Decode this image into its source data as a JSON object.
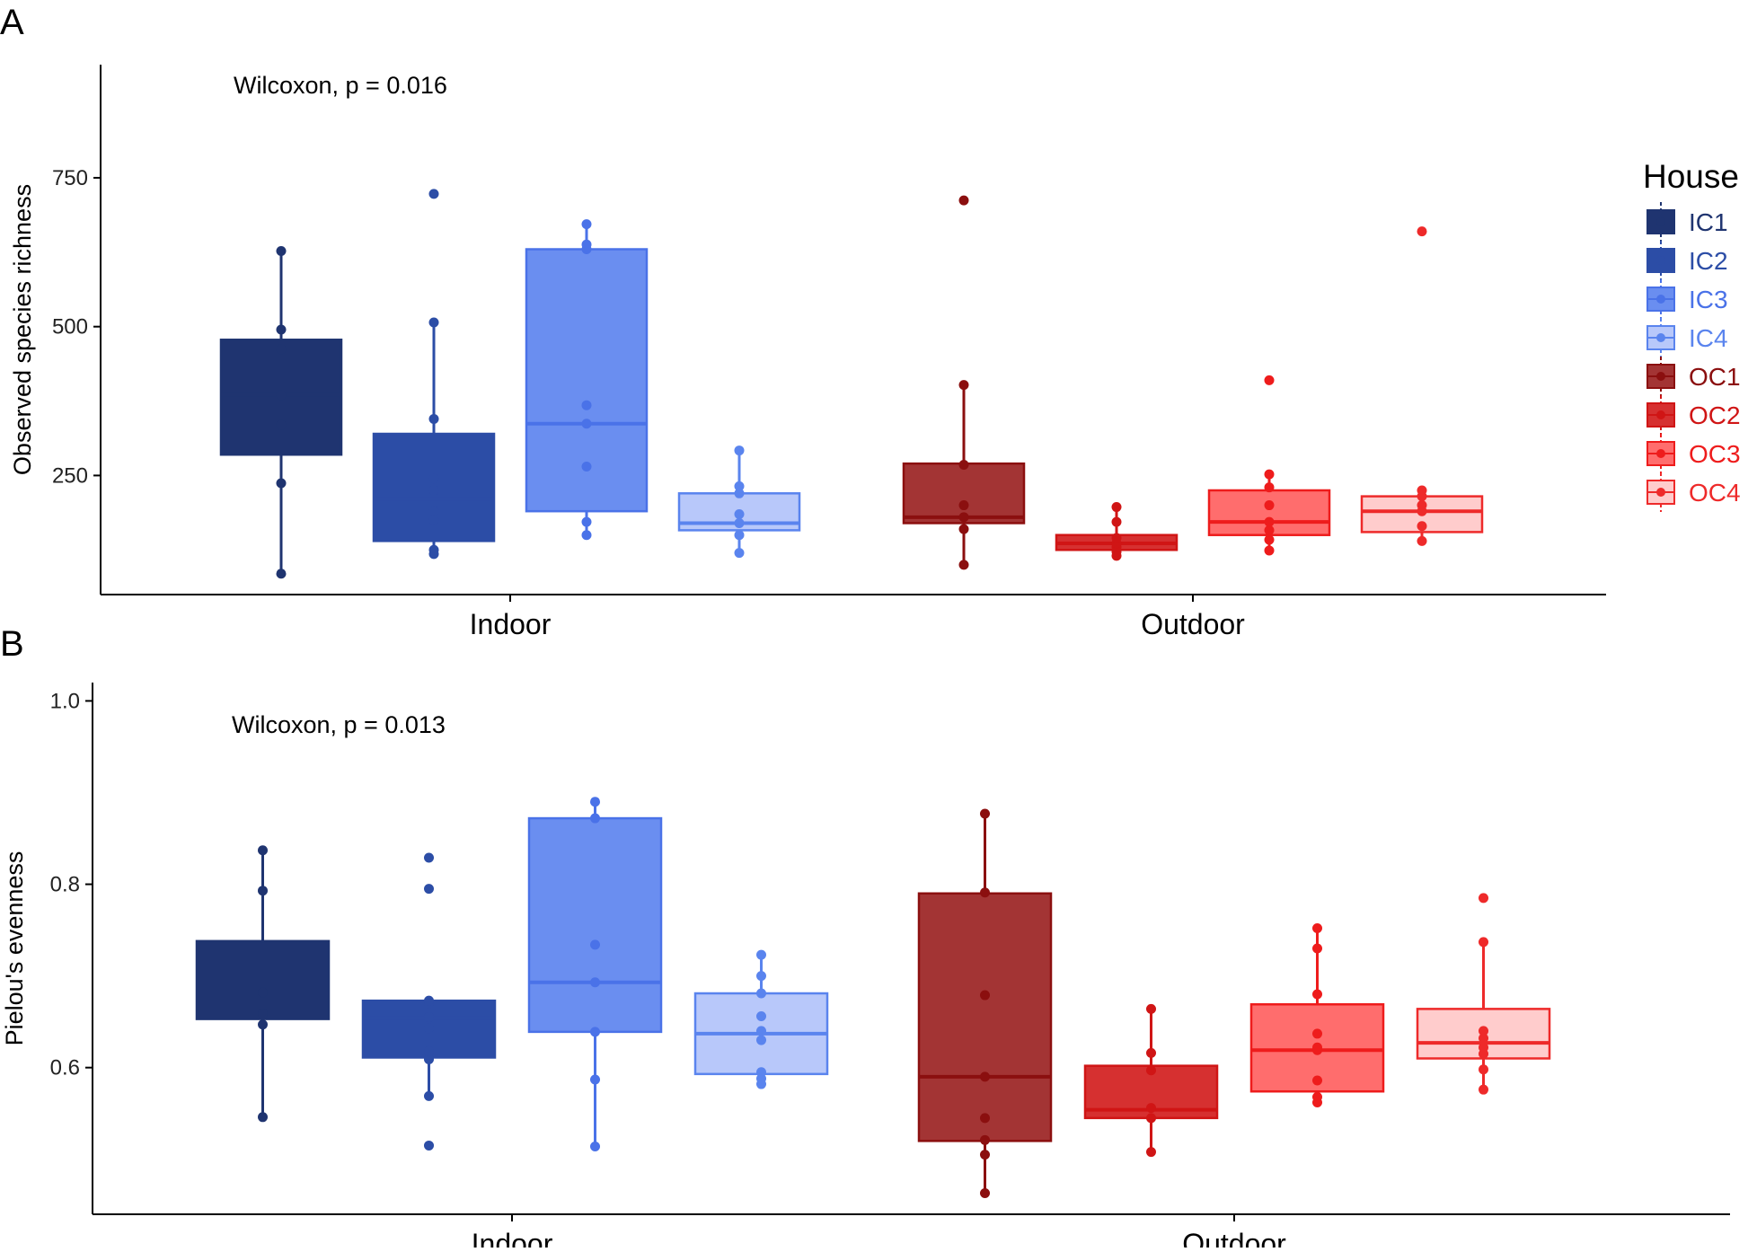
{
  "panel_labels": {
    "a": "A",
    "b": "B"
  },
  "legend": {
    "title": "House",
    "items": [
      {
        "label": "IC1",
        "fill": "#1f3470",
        "stroke": "#1f3470"
      },
      {
        "label": "IC2",
        "fill": "#2c4da6",
        "stroke": "#2c4da6"
      },
      {
        "label": "IC3",
        "fill": "#6a8ef0",
        "stroke": "#4a72e8"
      },
      {
        "label": "IC4",
        "fill": "#b8c8fa",
        "stroke": "#5a84ee"
      },
      {
        "label": "OC1",
        "fill": "#a33434",
        "stroke": "#8b0f0f"
      },
      {
        "label": "OC2",
        "fill": "#d63030",
        "stroke": "#d01515"
      },
      {
        "label": "OC3",
        "fill": "#ff6d6d",
        "stroke": "#ee1c1c"
      },
      {
        "label": "OC4",
        "fill": "#ffcccc",
        "stroke": "#ee2a2a"
      }
    ]
  },
  "chart_data": [
    {
      "type": "box",
      "panel": "A",
      "title": "",
      "xlabel": "",
      "ylabel": "Observed species richness",
      "annotation": "Wilcoxon,  p = 0.016",
      "categories": [
        "Indoor",
        "Outdoor"
      ],
      "yticks": [
        250,
        500,
        750
      ],
      "ylim": [
        50,
        940
      ],
      "grid": false,
      "legend_position": "right",
      "boxes": [
        {
          "group": "IC1",
          "category": "Indoor",
          "q1": 285,
          "median": 385,
          "q3": 478,
          "whisker_low": 85,
          "whisker_high": 627,
          "points": [
            85,
            237,
            335,
            385,
            462,
            495,
            627
          ]
        },
        {
          "group": "IC2",
          "category": "Indoor",
          "q1": 140,
          "median": 210,
          "q3": 320,
          "whisker_low": 118,
          "whisker_high": 507,
          "points": [
            118,
            125,
            175,
            190,
            225,
            245,
            345,
            507,
            723
          ]
        },
        {
          "group": "IC3",
          "category": "Indoor",
          "q1": 190,
          "median": 337,
          "q3": 630,
          "whisker_low": 150,
          "whisker_high": 672,
          "points": [
            150,
            172,
            265,
            337,
            368,
            630,
            638,
            672
          ]
        },
        {
          "group": "IC4",
          "category": "Indoor",
          "q1": 158,
          "median": 170,
          "q3": 220,
          "whisker_low": 120,
          "whisker_high": 292,
          "points": [
            120,
            150,
            170,
            185,
            220,
            232,
            292
          ]
        },
        {
          "group": "OC1",
          "category": "Outdoor",
          "q1": 170,
          "median": 180,
          "q3": 270,
          "whisker_low": 100,
          "whisker_high": 402,
          "points": [
            100,
            160,
            180,
            200,
            268,
            402,
            712
          ]
        },
        {
          "group": "OC2",
          "category": "Outdoor",
          "q1": 125,
          "median": 136,
          "q3": 150,
          "whisker_low": 115,
          "whisker_high": 197,
          "points": [
            115,
            122,
            130,
            136,
            145,
            172,
            197
          ]
        },
        {
          "group": "OC3",
          "category": "Outdoor",
          "q1": 150,
          "median": 172,
          "q3": 225,
          "whisker_low": 124,
          "whisker_high": 252,
          "points": [
            124,
            142,
            158,
            172,
            200,
            230,
            252,
            410
          ]
        },
        {
          "group": "OC4",
          "category": "Outdoor",
          "q1": 155,
          "median": 190,
          "q3": 215,
          "whisker_low": 140,
          "whisker_high": 225,
          "points": [
            140,
            165,
            190,
            200,
            215,
            225,
            660
          ]
        }
      ]
    },
    {
      "type": "box",
      "panel": "B",
      "title": "",
      "xlabel": "",
      "ylabel": "Pielou's evenness",
      "annotation": "Wilcoxon,  p = 0.013",
      "categories": [
        "Indoor",
        "Outdoor"
      ],
      "yticks": [
        0.6,
        0.8,
        1.0
      ],
      "ytick_labels": [
        "0.6",
        "0.8",
        "1.0"
      ],
      "ylim": [
        0.44,
        1.02
      ],
      "grid": false,
      "legend_position": "right",
      "boxes": [
        {
          "group": "IC1",
          "category": "Indoor",
          "q1": 0.653,
          "median": 0.681,
          "q3": 0.738,
          "whisker_low": 0.546,
          "whisker_high": 0.837,
          "points": [
            0.546,
            0.647,
            0.659,
            0.682,
            0.793,
            0.837
          ]
        },
        {
          "group": "IC2",
          "category": "Indoor",
          "q1": 0.611,
          "median": 0.654,
          "q3": 0.673,
          "whisker_low": 0.569,
          "whisker_high": 0.673,
          "points": [
            0.515,
            0.569,
            0.609,
            0.618,
            0.643,
            0.655,
            0.67,
            0.673,
            0.795,
            0.829
          ]
        },
        {
          "group": "IC3",
          "category": "Indoor",
          "q1": 0.639,
          "median": 0.693,
          "q3": 0.872,
          "whisker_low": 0.514,
          "whisker_high": 0.89,
          "points": [
            0.514,
            0.587,
            0.639,
            0.693,
            0.734,
            0.872,
            0.89
          ]
        },
        {
          "group": "IC4",
          "category": "Indoor",
          "q1": 0.593,
          "median": 0.637,
          "q3": 0.681,
          "whisker_low": 0.582,
          "whisker_high": 0.723,
          "points": [
            0.582,
            0.588,
            0.595,
            0.63,
            0.64,
            0.656,
            0.681,
            0.7,
            0.723
          ]
        },
        {
          "group": "OC1",
          "category": "Outdoor",
          "q1": 0.52,
          "median": 0.59,
          "q3": 0.79,
          "whisker_low": 0.463,
          "whisker_high": 0.877,
          "points": [
            0.463,
            0.505,
            0.521,
            0.545,
            0.59,
            0.679,
            0.791,
            0.877
          ]
        },
        {
          "group": "OC2",
          "category": "Outdoor",
          "q1": 0.545,
          "median": 0.554,
          "q3": 0.602,
          "whisker_low": 0.508,
          "whisker_high": 0.664,
          "points": [
            0.508,
            0.545,
            0.556,
            0.597,
            0.616,
            0.664
          ]
        },
        {
          "group": "OC3",
          "category": "Outdoor",
          "q1": 0.574,
          "median": 0.619,
          "q3": 0.669,
          "whisker_low": 0.562,
          "whisker_high": 0.752,
          "points": [
            0.562,
            0.568,
            0.586,
            0.619,
            0.622,
            0.637,
            0.68,
            0.73,
            0.752
          ]
        },
        {
          "group": "OC4",
          "category": "Outdoor",
          "q1": 0.61,
          "median": 0.627,
          "q3": 0.664,
          "whisker_low": 0.576,
          "whisker_high": 0.737,
          "points": [
            0.576,
            0.598,
            0.615,
            0.622,
            0.632,
            0.64,
            0.737,
            0.785
          ]
        }
      ]
    }
  ]
}
